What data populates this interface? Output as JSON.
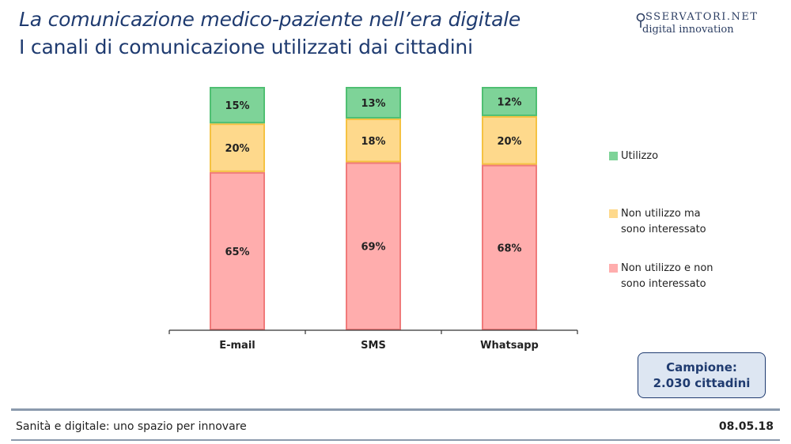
{
  "header": {
    "title": "La comunicazione medico-paziente nell’era digitale",
    "subtitle": "I canali di comunicazione utilizzati dai cittadini"
  },
  "logo": {
    "top": "SSERVATORI.NET",
    "bottom": "digital innovation"
  },
  "chart_data": {
    "type": "bar",
    "stacked": true,
    "categories": [
      "E-mail",
      "SMS",
      "Whatsapp"
    ],
    "series": [
      {
        "name": "Non utilizzo e non sono interessato",
        "values": [
          65,
          69,
          68
        ],
        "labels": [
          "65%",
          "69%",
          "68%"
        ],
        "color": "#ffadad",
        "border": "#f07a7a"
      },
      {
        "name": "Non utilizzo ma sono interessato",
        "values": [
          20,
          18,
          20
        ],
        "labels": [
          "20%",
          "18%",
          "20%"
        ],
        "color": "#fed98c",
        "border": "#f5c242"
      },
      {
        "name": "Utilizzo",
        "values": [
          15,
          13,
          12
        ],
        "labels": [
          "15%",
          "13%",
          "12%"
        ],
        "color": "#7ed398",
        "border": "#4fbf72"
      }
    ],
    "ylim": [
      0,
      100
    ],
    "legend_position": "right"
  },
  "legend": {
    "utilizzo": {
      "line1": "Utilizzo",
      "color": "#7ed398"
    },
    "interessato": {
      "line1": "Non utilizzo ma",
      "line2": "sono interessato",
      "color": "#fed98c"
    },
    "non_interessato": {
      "line1": "Non utilizzo e non",
      "line2": "sono interessato",
      "color": "#ffadad"
    }
  },
  "sample": {
    "line1": "Campione:",
    "line2": "2.030 cittadini"
  },
  "footer": {
    "left": "Sanità e digitale: uno spazio per innovare",
    "right": "08.05.18"
  }
}
